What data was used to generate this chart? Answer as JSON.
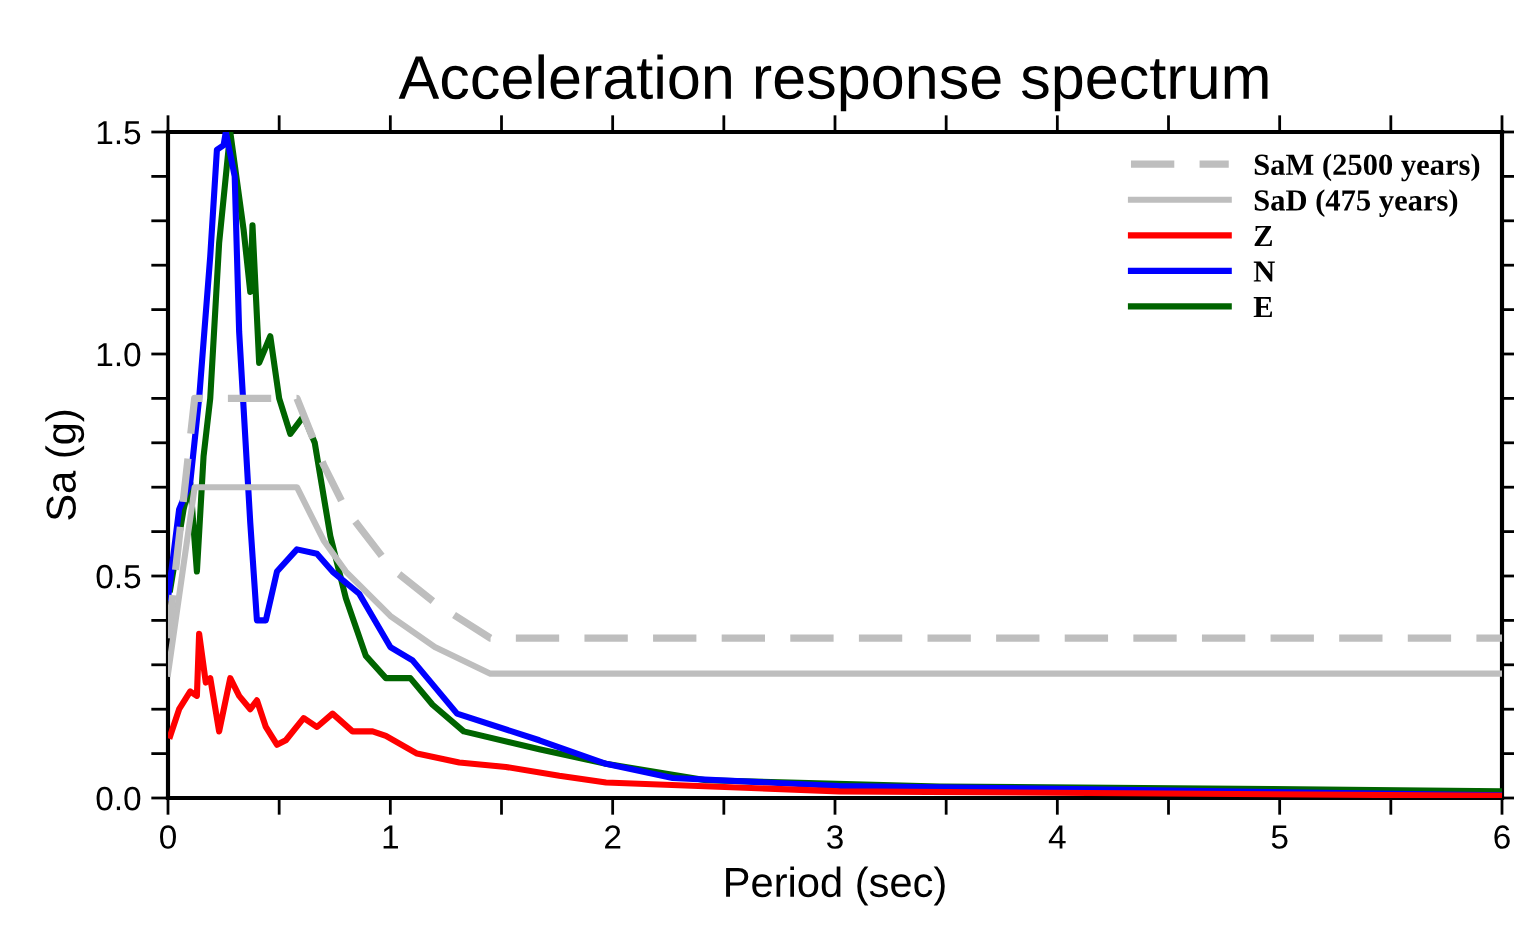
{
  "chart_data": {
    "type": "line",
    "title": "Acceleration response spectrum",
    "xlabel": "Period (sec)",
    "ylabel": "Sa (g)",
    "xlim": [
      0,
      6
    ],
    "ylim": [
      0,
      1.5
    ],
    "xticks": [
      0,
      {
        "value": 0.5,
        "label": null
      },
      1,
      {
        "value": 1.5,
        "label": null
      },
      2,
      {
        "value": 2.5,
        "label": null
      },
      3,
      {
        "value": 3.5,
        "label": null
      },
      4,
      {
        "value": 4.5,
        "label": null
      },
      5,
      {
        "value": 5.5,
        "label": null
      },
      6
    ],
    "yticks": [
      {
        "value": 0,
        "label": "0.0"
      },
      {
        "value": 0.1,
        "label": null
      },
      {
        "value": 0.2,
        "label": null
      },
      {
        "value": 0.3,
        "label": null
      },
      {
        "value": 0.4,
        "label": null
      },
      0.5,
      {
        "value": 0.6,
        "label": null
      },
      {
        "value": 0.7,
        "label": null
      },
      {
        "value": 0.8,
        "label": null
      },
      {
        "value": 0.9,
        "label": null
      },
      {
        "value": 1.0,
        "label": "1.0"
      },
      {
        "value": 1.1,
        "label": null
      },
      {
        "value": 1.2,
        "label": null
      },
      {
        "value": 1.3,
        "label": null
      },
      {
        "value": 1.4,
        "label": null
      },
      1.5
    ],
    "grid": false,
    "legend": "top right",
    "marker": "none",
    "series": [
      {
        "name": "SaM (2500 years)",
        "color": "#bebebe",
        "line_style": "dashed",
        "x": [
          0,
          0.12,
          0.58,
          0.7,
          0.8,
          1.0,
          1.2,
          1.45,
          6
        ],
        "values": [
          0.36,
          0.9,
          0.9,
          0.75,
          0.65,
          0.52,
          0.44,
          0.36,
          0.36
        ]
      },
      {
        "name": "SaD (475 years)",
        "color": "#bebebe",
        "line_style": "solid",
        "x": [
          0,
          0.12,
          0.58,
          0.7,
          0.8,
          1.0,
          1.2,
          1.45,
          6
        ],
        "values": [
          0.28,
          0.7,
          0.7,
          0.58,
          0.51,
          0.41,
          0.34,
          0.28,
          0.28
        ]
      },
      {
        "name": "Z",
        "color": "#ff0000",
        "line_style": "solid",
        "x": [
          0.01,
          0.05,
          0.1,
          0.13,
          0.14,
          0.17,
          0.19,
          0.23,
          0.28,
          0.32,
          0.37,
          0.4,
          0.44,
          0.49,
          0.53,
          0.61,
          0.67,
          0.74,
          0.83,
          0.92,
          0.98,
          1.12,
          1.31,
          1.52,
          1.76,
          1.97,
          3.02,
          6
        ],
        "values": [
          0.14,
          0.2,
          0.24,
          0.23,
          0.37,
          0.26,
          0.27,
          0.15,
          0.27,
          0.23,
          0.2,
          0.22,
          0.16,
          0.12,
          0.13,
          0.18,
          0.16,
          0.19,
          0.15,
          0.15,
          0.14,
          0.1,
          0.08,
          0.07,
          0.05,
          0.035,
          0.015,
          0.005
        ]
      },
      {
        "name": "N",
        "color": "#0000ff",
        "line_style": "solid",
        "x": [
          0.0,
          0.05,
          0.1,
          0.14,
          0.19,
          0.22,
          0.25,
          0.26,
          0.3,
          0.32,
          0.37,
          0.4,
          0.44,
          0.49,
          0.58,
          0.67,
          0.74,
          0.86,
          1.0,
          1.1,
          1.3,
          1.67,
          1.97,
          2.27,
          3.02,
          4.07,
          6
        ],
        "values": [
          0.45,
          0.65,
          0.71,
          0.9,
          1.22,
          1.46,
          1.47,
          1.5,
          1.4,
          1.05,
          0.62,
          0.4,
          0.4,
          0.51,
          0.56,
          0.55,
          0.51,
          0.46,
          0.34,
          0.31,
          0.19,
          0.13,
          0.077,
          0.045,
          0.027,
          0.02,
          0.006
        ]
      },
      {
        "name": "E",
        "color": "#006400",
        "line_style": "solid",
        "x": [
          0.01,
          0.07,
          0.1,
          0.13,
          0.16,
          0.19,
          0.23,
          0.28,
          0.34,
          0.37,
          0.38,
          0.41,
          0.46,
          0.5,
          0.55,
          0.61,
          0.66,
          0.73,
          0.8,
          0.89,
          0.98,
          1.09,
          1.19,
          1.33,
          1.67,
          1.97,
          2.42,
          3.47,
          4.97,
          6
        ],
        "values": [
          0.47,
          0.65,
          0.71,
          0.51,
          0.77,
          0.9,
          1.25,
          1.5,
          1.28,
          1.14,
          1.29,
          0.98,
          1.04,
          0.9,
          0.82,
          0.86,
          0.8,
          0.59,
          0.45,
          0.32,
          0.27,
          0.27,
          0.21,
          0.15,
          0.11,
          0.077,
          0.04,
          0.026,
          0.02,
          0.015
        ]
      }
    ]
  }
}
